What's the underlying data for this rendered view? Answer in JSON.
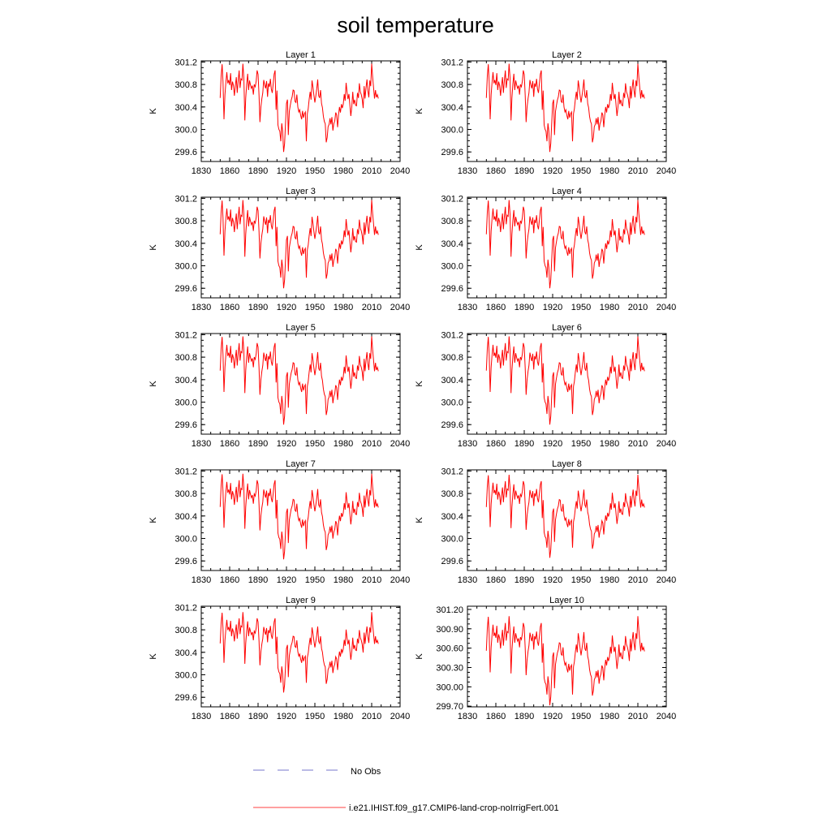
{
  "figure": {
    "title": "soil temperature",
    "legend": [
      {
        "label": "No Obs",
        "color": "#7777cc",
        "style": "dashed"
      },
      {
        "label": "i.e21.IHIST.f09_g17.CMIP6-land-crop-noIrrigFert.001",
        "color": "#ff0000",
        "style": "solid"
      }
    ]
  },
  "chart_data": [
    {
      "type": "line",
      "title": "Layer 1",
      "ylabel": "K",
      "xlim": [
        1830,
        2040
      ],
      "ylim": [
        299.43,
        301.22
      ],
      "xticks": [
        1830,
        1860,
        1890,
        1920,
        1950,
        1980,
        2010,
        2040
      ],
      "yticks": [
        "301.2",
        "300.8",
        "300.4",
        "300.0",
        "299.6"
      ],
      "grid": false,
      "series": [
        {
          "name": "i.e21.IHIST.f09_g17.CMIP6-land-crop-noIrrigFert.001",
          "color": "#ff0000"
        }
      ]
    },
    {
      "type": "line",
      "title": "Layer 2",
      "ylabel": "K",
      "xlim": [
        1830,
        2040
      ],
      "ylim": [
        299.43,
        301.22
      ],
      "xticks": [
        1830,
        1860,
        1890,
        1920,
        1950,
        1980,
        2010,
        2040
      ],
      "yticks": [
        "301.2",
        "300.8",
        "300.4",
        "300.0",
        "299.6"
      ],
      "grid": false,
      "series": [
        {
          "name": "i.e21.IHIST.f09_g17.CMIP6-land-crop-noIrrigFert.001",
          "color": "#ff0000"
        }
      ]
    },
    {
      "type": "line",
      "title": "Layer 3",
      "ylabel": "K",
      "xlim": [
        1830,
        2040
      ],
      "ylim": [
        299.43,
        301.22
      ],
      "xticks": [
        1830,
        1860,
        1890,
        1920,
        1950,
        1980,
        2010,
        2040
      ],
      "yticks": [
        "301.2",
        "300.8",
        "300.4",
        "300.0",
        "299.6"
      ],
      "grid": false,
      "series": [
        {
          "name": "i.e21.IHIST.f09_g17.CMIP6-land-crop-noIrrigFert.001",
          "color": "#ff0000"
        }
      ]
    },
    {
      "type": "line",
      "title": "Layer 4",
      "ylabel": "K",
      "xlim": [
        1830,
        2040
      ],
      "ylim": [
        299.43,
        301.22
      ],
      "xticks": [
        1830,
        1860,
        1890,
        1920,
        1950,
        1980,
        2010,
        2040
      ],
      "yticks": [
        "301.2",
        "300.8",
        "300.4",
        "300.0",
        "299.6"
      ],
      "grid": false,
      "series": [
        {
          "name": "i.e21.IHIST.f09_g17.CMIP6-land-crop-noIrrigFert.001",
          "color": "#ff0000"
        }
      ]
    },
    {
      "type": "line",
      "title": "Layer 5",
      "ylabel": "K",
      "xlim": [
        1830,
        2040
      ],
      "ylim": [
        299.43,
        301.22
      ],
      "xticks": [
        1830,
        1860,
        1890,
        1920,
        1950,
        1980,
        2010,
        2040
      ],
      "yticks": [
        "301.2",
        "300.8",
        "300.4",
        "300.0",
        "299.6"
      ],
      "grid": false,
      "series": [
        {
          "name": "i.e21.IHIST.f09_g17.CMIP6-land-crop-noIrrigFert.001",
          "color": "#ff0000"
        }
      ]
    },
    {
      "type": "line",
      "title": "Layer 6",
      "ylabel": "K",
      "xlim": [
        1830,
        2040
      ],
      "ylim": [
        299.43,
        301.22
      ],
      "xticks": [
        1830,
        1860,
        1890,
        1920,
        1950,
        1980,
        2010,
        2040
      ],
      "yticks": [
        "301.2",
        "300.8",
        "300.4",
        "300.0",
        "299.6"
      ],
      "grid": false,
      "series": [
        {
          "name": "i.e21.IHIST.f09_g17.CMIP6-land-crop-noIrrigFert.001",
          "color": "#ff0000"
        }
      ]
    },
    {
      "type": "line",
      "title": "Layer 7",
      "ylabel": "K",
      "xlim": [
        1830,
        2040
      ],
      "ylim": [
        299.43,
        301.22
      ],
      "xticks": [
        1830,
        1860,
        1890,
        1920,
        1950,
        1980,
        2010,
        2040
      ],
      "yticks": [
        "301.2",
        "300.8",
        "300.4",
        "300.0",
        "299.6"
      ],
      "grid": false,
      "series": [
        {
          "name": "i.e21.IHIST.f09_g17.CMIP6-land-crop-noIrrigFert.001",
          "color": "#ff0000"
        }
      ]
    },
    {
      "type": "line",
      "title": "Layer 8",
      "ylabel": "K",
      "xlim": [
        1830,
        2040
      ],
      "ylim": [
        299.43,
        301.22
      ],
      "xticks": [
        1830,
        1860,
        1890,
        1920,
        1950,
        1980,
        2010,
        2040
      ],
      "yticks": [
        "301.2",
        "300.8",
        "300.4",
        "300.0",
        "299.6"
      ],
      "grid": false,
      "series": [
        {
          "name": "i.e21.IHIST.f09_g17.CMIP6-land-crop-noIrrigFert.001",
          "color": "#ff0000"
        }
      ]
    },
    {
      "type": "line",
      "title": "Layer 9",
      "ylabel": "K",
      "xlim": [
        1830,
        2040
      ],
      "ylim": [
        299.43,
        301.22
      ],
      "xticks": [
        1830,
        1860,
        1890,
        1920,
        1950,
        1980,
        2010,
        2040
      ],
      "yticks": [
        "301.2",
        "300.8",
        "300.4",
        "300.0",
        "299.6"
      ],
      "grid": false,
      "series": [
        {
          "name": "i.e21.IHIST.f09_g17.CMIP6-land-crop-noIrrigFert.001",
          "color": "#ff0000"
        }
      ]
    },
    {
      "type": "line",
      "title": "Layer 10",
      "ylabel": "K",
      "xlim": [
        1830,
        2040
      ],
      "ylim": [
        299.69,
        301.25
      ],
      "xticks": [
        1830,
        1860,
        1890,
        1920,
        1950,
        1980,
        2010,
        2040
      ],
      "yticks": [
        "301.20",
        "300.90",
        "300.60",
        "300.30",
        "300.00",
        "299.70"
      ],
      "grid": false,
      "series": [
        {
          "name": "i.e21.IHIST.f09_g17.CMIP6-land-crop-noIrrigFert.001",
          "color": "#ff0000"
        }
      ]
    }
  ],
  "series_values": {
    "x_start": 1850,
    "x_step": 1,
    "y": [
      300.56,
      300.95,
      301.16,
      300.85,
      300.18,
      300.62,
      300.83,
      301.02,
      300.82,
      300.88,
      300.79,
      301.0,
      300.7,
      300.85,
      300.78,
      300.6,
      300.78,
      300.93,
      300.65,
      300.87,
      301.05,
      300.74,
      300.9,
      300.88,
      301.17,
      300.92,
      300.16,
      300.56,
      300.81,
      300.99,
      300.7,
      300.87,
      300.79,
      300.73,
      300.78,
      300.62,
      300.8,
      300.76,
      300.86,
      301.05,
      300.98,
      300.6,
      300.13,
      300.4,
      300.55,
      300.65,
      300.88,
      300.79,
      300.73,
      300.86,
      300.58,
      300.82,
      300.76,
      300.9,
      300.72,
      300.65,
      300.82,
      300.98,
      301.05,
      300.35,
      300.69,
      300.08,
      300.0,
      299.97,
      299.79,
      300.11,
      299.97,
      299.6,
      299.75,
      300.1,
      300.46,
      300.53,
      299.9,
      300.32,
      300.43,
      300.52,
      300.58,
      300.7,
      300.69,
      300.5,
      300.48,
      300.62,
      300.4,
      300.31,
      300.35,
      300.25,
      300.18,
      300.33,
      300.21,
      300.28,
      300.31,
      299.79,
      300.28,
      300.37,
      300.54,
      300.67,
      300.53,
      300.87,
      300.75,
      300.61,
      300.48,
      300.6,
      300.72,
      300.89,
      300.6,
      300.56,
      300.7,
      300.46,
      300.39,
      300.23,
      300.14,
      300.1,
      299.77,
      299.86,
      300.05,
      300.09,
      300.2,
      300.09,
      300.22,
      299.98,
      300.1,
      300.15,
      300.3,
      300.26,
      300.04,
      300.26,
      300.4,
      300.3,
      300.45,
      300.38,
      300.45,
      300.63,
      300.51,
      300.83,
      300.66,
      300.54,
      300.63,
      300.42,
      300.24,
      300.4,
      300.67,
      300.45,
      300.53,
      300.43,
      300.42,
      300.65,
      300.56,
      300.82,
      300.67,
      300.62,
      300.54,
      300.38,
      300.77,
      300.55,
      300.74,
      300.89,
      300.69,
      300.57,
      300.87,
      300.77,
      301.17,
      300.93,
      300.75,
      300.55,
      300.7,
      300.57,
      300.62,
      300.55
    ]
  }
}
